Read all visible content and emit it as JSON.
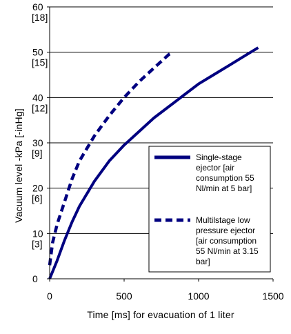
{
  "chart_data": {
    "type": "line",
    "xlabel": "Time [ms]  for evacuation of 1 liter",
    "ylabel": "Vacuum  level  -kPa [-inHg]",
    "xlim": [
      0,
      1500
    ],
    "ylim": [
      0,
      60
    ],
    "x_ticks": [
      "0",
      "500",
      "1000",
      "1500"
    ],
    "y_ticks": [
      {
        "value": 0,
        "label": "0",
        "alt": ""
      },
      {
        "value": 10,
        "label": "10",
        "alt": "[3]"
      },
      {
        "value": 20,
        "label": "20",
        "alt": "[6]"
      },
      {
        "value": 30,
        "label": "30",
        "alt": "[9]"
      },
      {
        "value": 40,
        "label": "40",
        "alt": "[12]"
      },
      {
        "value": 50,
        "label": "50",
        "alt": "[15]"
      },
      {
        "value": 60,
        "label": "60",
        "alt": "[18]"
      }
    ],
    "grid": "horizontal",
    "legend_position": "right-center",
    "series": [
      {
        "name": "Single-stage ejector [air consumption 55 Nl/min at 5 bar]",
        "legend_lines": [
          "Single-stage",
          "ejector [air",
          "consumption 55",
          "Nl/min at 5 bar]"
        ],
        "style": "solid",
        "color": "#000080",
        "points": [
          [
            0,
            0
          ],
          [
            50,
            4
          ],
          [
            100,
            8.5
          ],
          [
            150,
            12.5
          ],
          [
            200,
            16
          ],
          [
            300,
            21.5
          ],
          [
            400,
            26
          ],
          [
            500,
            29.5
          ],
          [
            600,
            32.5
          ],
          [
            700,
            35.5
          ],
          [
            800,
            38
          ],
          [
            900,
            40.5
          ],
          [
            1000,
            43
          ],
          [
            1100,
            45
          ],
          [
            1200,
            47
          ],
          [
            1300,
            49
          ],
          [
            1400,
            51
          ]
        ]
      },
      {
        "name": "Multilstage low pressure ejector [air consumption 55 Nl/min at 3.15 bar]",
        "legend_lines": [
          "Multilstage low",
          "pressure ejector",
          "[air consumption",
          "55 Nl/min at 3.15",
          "bar]"
        ],
        "style": "dashed",
        "color": "#000080",
        "points": [
          [
            0,
            3
          ],
          [
            20,
            8
          ],
          [
            50,
            12
          ],
          [
            100,
            17
          ],
          [
            150,
            22
          ],
          [
            200,
            26
          ],
          [
            300,
            31.5
          ],
          [
            400,
            36
          ],
          [
            500,
            40
          ],
          [
            600,
            43.5
          ],
          [
            700,
            46.5
          ],
          [
            800,
            49.5
          ],
          [
            830,
            50
          ]
        ]
      }
    ]
  }
}
